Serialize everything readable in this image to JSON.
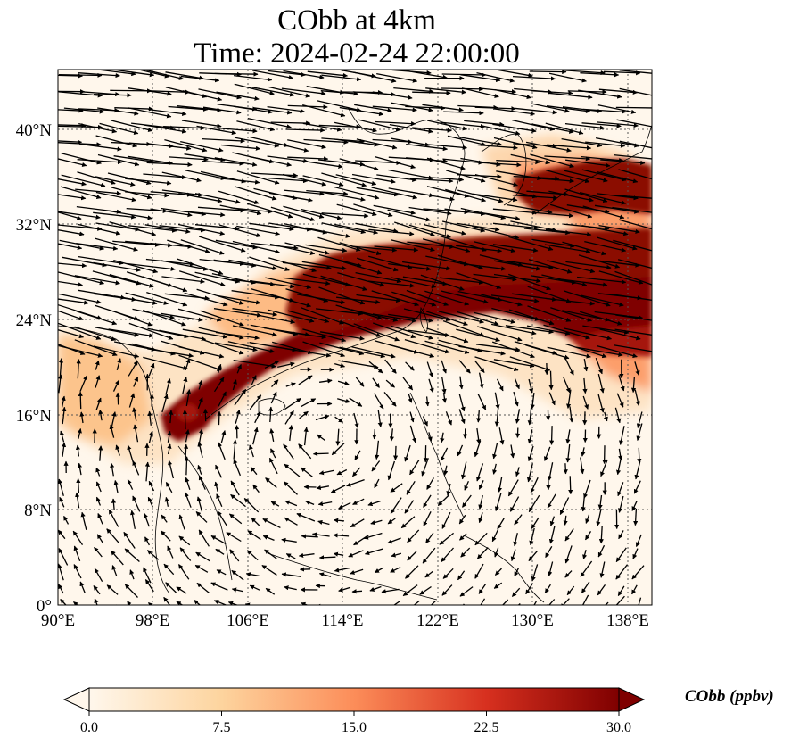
{
  "title": {
    "line1": "CObb at 4km",
    "line2": "Time: 2024-02-24 22:00:00"
  },
  "map": {
    "lon_range": [
      90,
      140
    ],
    "lat_range": [
      0,
      45
    ],
    "grid": "dotted",
    "colormap": "OrRd",
    "colors": {
      "low": "#fff7ec",
      "mid": "#fc8d59",
      "high": "#7f0000",
      "coast": "#000000",
      "arrow": "#000000"
    },
    "x_ticks": [
      "90°E",
      "98°E",
      "106°E",
      "114°E",
      "122°E",
      "130°E",
      "138°E"
    ],
    "y_ticks": [
      "0°",
      "8°N",
      "16°N",
      "24°N",
      "32°N",
      "40°N"
    ]
  },
  "colorbar": {
    "label": "CObb (ppbv)",
    "ticks": [
      "0.0",
      "7.5",
      "15.0",
      "22.5",
      "30.0"
    ],
    "range": [
      0,
      30
    ],
    "extend": "both"
  },
  "chart_data": {
    "type": "heatmap",
    "title": "CObb at 4km Time: 2024-02-24 22:00:00",
    "xlabel": "",
    "ylabel": "",
    "x_range": [
      90,
      140
    ],
    "y_range": [
      0,
      45
    ],
    "value_range": [
      0,
      30
    ],
    "units": "ppbv",
    "plume_max_band": [
      {
        "lon": 101,
        "lat": 16.3,
        "value": 30
      },
      {
        "lon": 104,
        "lat": 17.5,
        "value": 30
      },
      {
        "lon": 108,
        "lat": 19.5,
        "value": 30
      },
      {
        "lon": 112,
        "lat": 21.5,
        "value": 30
      },
      {
        "lon": 116,
        "lat": 23.5,
        "value": 30
      },
      {
        "lon": 120,
        "lat": 25.5,
        "value": 30
      },
      {
        "lon": 124,
        "lat": 27.5,
        "value": 30
      },
      {
        "lon": 128,
        "lat": 28.5,
        "value": 30
      },
      {
        "lon": 132,
        "lat": 29.0,
        "value": 30
      },
      {
        "lon": 137,
        "lat": 28.5,
        "value": 30
      },
      {
        "lon": 134,
        "lat": 35.0,
        "value": 30
      }
    ]
  }
}
